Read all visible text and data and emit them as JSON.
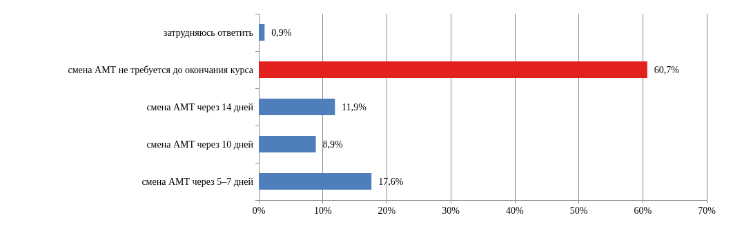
{
  "chart_data": {
    "type": "bar",
    "orientation": "horizontal",
    "categories": [
      "затрудняюсь ответить",
      "смена АМТ не требуется до окончания курса",
      "смена АМТ через 14 дней",
      "смена АМТ через 10 дней",
      "смена АМТ через 5–7 дней"
    ],
    "values": [
      0.9,
      60.7,
      11.9,
      8.9,
      17.6
    ],
    "colors": [
      "#4f7fbb",
      "#e2211c",
      "#4f7fbb",
      "#4f7fbb",
      "#4f7fbb"
    ],
    "value_labels": [
      "0,9%",
      "60,7%",
      "11,9%",
      "8,9%",
      "17,6%"
    ],
    "xlim": [
      0,
      70
    ],
    "xticks": [
      {
        "value": 0,
        "label": "0%"
      },
      {
        "value": 10,
        "label": "10%"
      },
      {
        "value": 20,
        "label": "20%"
      },
      {
        "value": 30,
        "label": "30%"
      },
      {
        "value": 40,
        "label": "40%"
      },
      {
        "value": 50,
        "label": "50%"
      },
      {
        "value": 60,
        "label": "60%"
      },
      {
        "value": 70,
        "label": "70%"
      }
    ],
    "grid": "x"
  }
}
